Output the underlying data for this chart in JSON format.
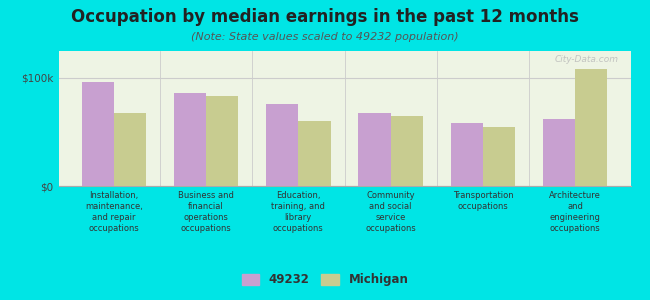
{
  "title": "Occupation by median earnings in the past 12 months",
  "subtitle": "(Note: State values scaled to 49232 population)",
  "categories": [
    "Installation,\nmaintenance,\nand repair\noccupations",
    "Business and\nfinancial\noperations\noccupations",
    "Education,\ntraining, and\nlibrary\noccupations",
    "Community\nand social\nservice\noccupations",
    "Transportation\noccupations",
    "Architecture\nand\nengineering\noccupations"
  ],
  "values_49232": [
    96000,
    86000,
    76000,
    68000,
    58000,
    62000
  ],
  "values_michigan": [
    68000,
    83000,
    60000,
    65000,
    55000,
    108000
  ],
  "color_49232": "#c8a0d0",
  "color_michigan": "#c8cc90",
  "bar_width": 0.35,
  "ylim": [
    0,
    125000
  ],
  "yticks": [
    0,
    100000
  ],
  "ytick_labels": [
    "$0",
    "$100k"
  ],
  "legend_labels": [
    "49232",
    "Michigan"
  ],
  "background_color": "#00e5e5",
  "plot_bg_color": "#eef4e4",
  "watermark": "City-Data.com",
  "title_fontsize": 12,
  "subtitle_fontsize": 8,
  "tick_fontsize": 7.5,
  "xtick_fontsize": 6.0,
  "legend_fontsize": 8.5
}
